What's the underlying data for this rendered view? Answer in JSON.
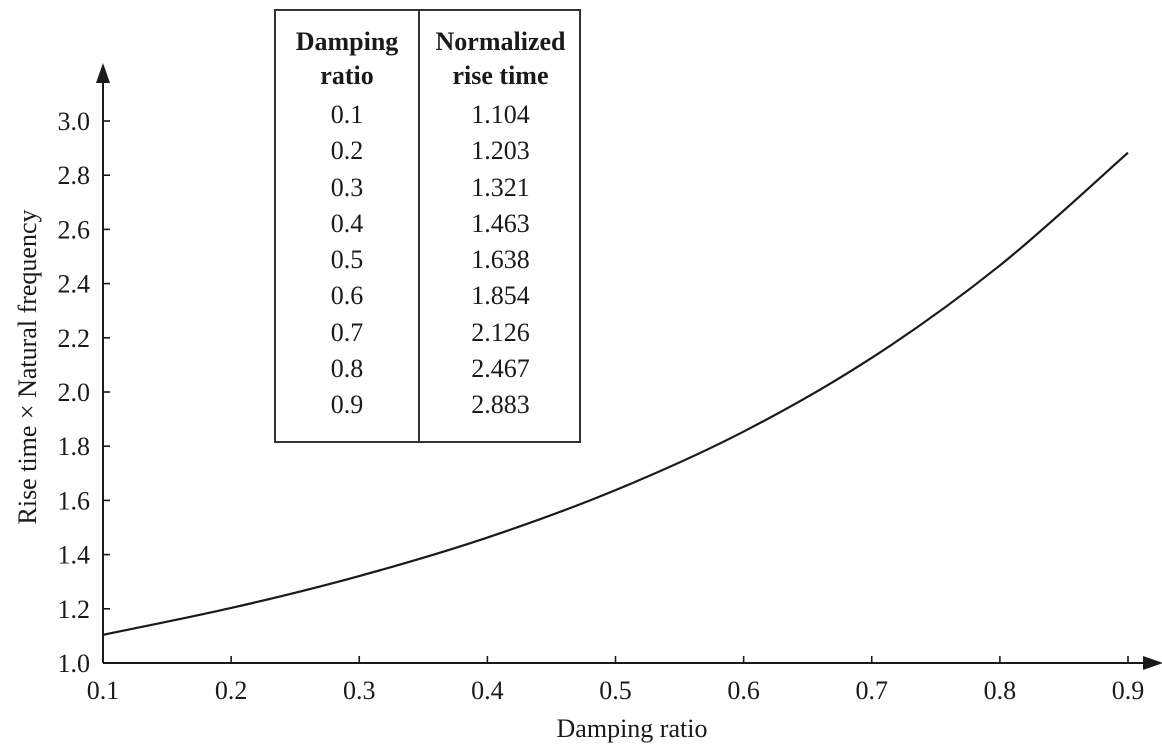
{
  "chart_data": {
    "type": "line",
    "title": "",
    "xlabel": "Damping ratio",
    "ylabel": "Rise time × Natural frequency",
    "xlim": [
      0.1,
      0.9
    ],
    "ylim": [
      1.0,
      3.0
    ],
    "x_ticks": [
      "0.1",
      "0.2",
      "0.3",
      "0.4",
      "0.5",
      "0.6",
      "0.7",
      "0.8",
      "0.9"
    ],
    "y_ticks": [
      "1.0",
      "1.2",
      "1.4",
      "1.6",
      "1.8",
      "2.0",
      "2.2",
      "2.4",
      "2.6",
      "2.8",
      "3.0"
    ],
    "grid": false,
    "series": [
      {
        "x": [
          0.1,
          0.2,
          0.3,
          0.4,
          0.5,
          0.6,
          0.7,
          0.8,
          0.9
        ],
        "y": [
          1.104,
          1.203,
          1.321,
          1.463,
          1.638,
          1.854,
          2.126,
          2.467,
          2.883
        ]
      }
    ]
  },
  "table": {
    "headers": [
      "Damping\nratio",
      "Normalized\nrise time"
    ],
    "rows": [
      [
        "0.1",
        "1.104"
      ],
      [
        "0.2",
        "1.203"
      ],
      [
        "0.3",
        "1.321"
      ],
      [
        "0.4",
        "1.463"
      ],
      [
        "0.5",
        "1.638"
      ],
      [
        "0.6",
        "1.854"
      ],
      [
        "0.7",
        "2.126"
      ],
      [
        "0.8",
        "2.467"
      ],
      [
        "0.9",
        "2.883"
      ]
    ]
  },
  "colors": {
    "line": "#1a1a1a",
    "axis": "#1a1a1a"
  }
}
